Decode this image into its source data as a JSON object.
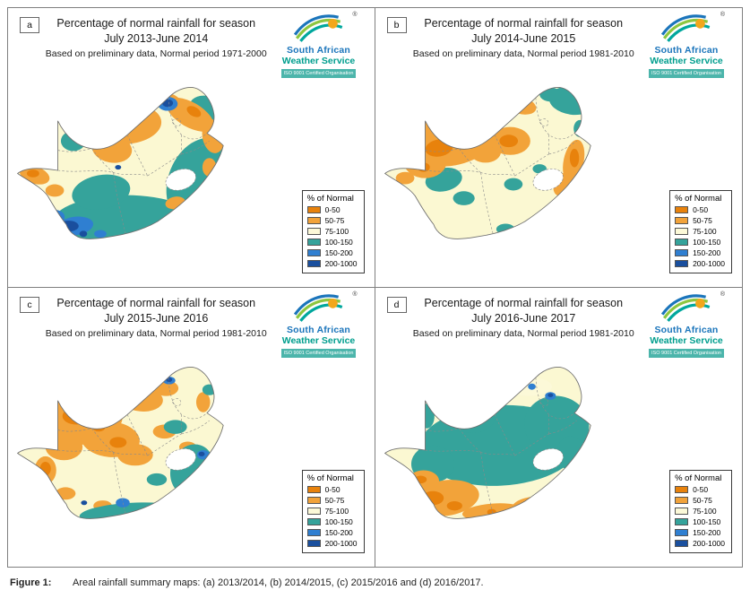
{
  "figure": {
    "caption_label": "Figure 1:",
    "caption_text": "Areal rainfall summary maps: (a) 2013/2014, (b) 2014/2015, (c) 2015/2016 and (d) 2016/2017."
  },
  "logo": {
    "name_line1": "South African",
    "name_line2": "Weather Service",
    "iso_badge": "ISO 9001 Certified Organisation",
    "registered": "®"
  },
  "legend": {
    "title": "% of Normal",
    "entries": [
      {
        "label": "0-50",
        "color": "#E8820C"
      },
      {
        "label": "50-75",
        "color": "#F2A33A"
      },
      {
        "label": "75-100",
        "color": "#FCF9D8"
      },
      {
        "label": "100-150",
        "color": "#35A39B"
      },
      {
        "label": "150-200",
        "color": "#2F7FD1"
      },
      {
        "label": "200-1000",
        "color": "#1A4F9E"
      }
    ]
  },
  "map_base_color": "#FBF8D2",
  "panels": [
    {
      "label": "a",
      "title_line1": "Percentage of normal rainfall for season",
      "title_line2": "July 2013-June 2014",
      "subtitle": "Based on preliminary data, Normal period 1971-2000"
    },
    {
      "label": "b",
      "title_line1": "Percentage of normal rainfall for season",
      "title_line2": "July 2014-June 2015",
      "subtitle": "Based on preliminary data, Normal period 1981-2010"
    },
    {
      "label": "c",
      "title_line1": "Percentage of normal rainfall for season",
      "title_line2": "July 2015-June 2016",
      "subtitle": "Based on preliminary data, Normal period 1981-2010"
    },
    {
      "label": "d",
      "title_line1": "Percentage of normal rainfall for season",
      "title_line2": "July 2016-June 2017",
      "subtitle": "Based on preliminary data, Normal period 1981-2010"
    }
  ]
}
